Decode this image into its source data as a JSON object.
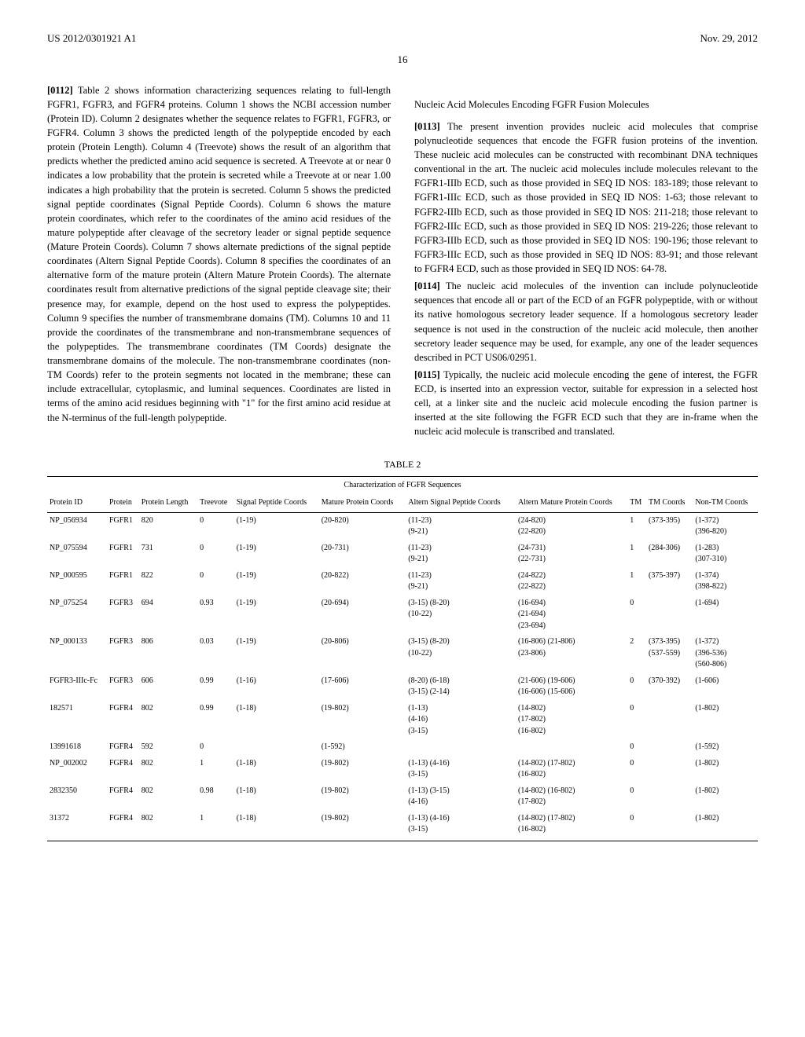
{
  "header": {
    "pub_number": "US 2012/0301921 A1",
    "date": "Nov. 29, 2012"
  },
  "page_number": "16",
  "left_column": {
    "para_0112_num": "[0112]",
    "para_0112": "Table 2 shows information characterizing sequences relating to full-length FGFR1, FGFR3, and FGFR4 proteins. Column 1 shows the NCBI accession number (Protein ID). Column 2 designates whether the sequence relates to FGFR1, FGFR3, or FGFR4. Column 3 shows the predicted length of the polypeptide encoded by each protein (Protein Length). Column 4 (Treevote) shows the result of an algorithm that predicts whether the predicted amino acid sequence is secreted. A Treevote at or near 0 indicates a low probability that the protein is secreted while a Treevote at or near 1.00 indicates a high probability that the protein is secreted. Column 5 shows the predicted signal peptide coordinates (Signal Peptide Coords). Column 6 shows the mature protein coordinates, which refer to the coordinates of the amino acid residues of the mature polypeptide after cleavage of the secretory leader or signal peptide sequence (Mature Protein Coords). Column 7 shows alternate predictions of the signal peptide coordinates (Altern Signal Peptide Coords). Column 8 specifies the coordinates of an alternative form of the mature protein (Altern Mature Protein Coords). The alternate coordinates result from alternative predictions of the signal peptide cleavage site; their presence may, for example, depend on the host used to express the polypeptides. Column 9 specifies the number of transmembrane domains (TM). Columns 10 and 11 provide the coordinates of the transmembrane and non-transmembrane sequences of the polypeptides. The transmembrane coordinates (TM Coords) designate the transmembrane domains of the molecule. The non-transmembrane coordinates (non-TM Coords) refer to the protein segments not located in the membrane; these can include extracellular, cytoplasmic, and luminal sequences. Coordinates are listed in terms of the amino acid residues beginning with \"1\" for the first amino acid residue at the N-terminus of the full-length polypeptide."
  },
  "right_column": {
    "section_heading": "Nucleic Acid Molecules Encoding FGFR Fusion Molecules",
    "para_0113_num": "[0113]",
    "para_0113": "The present invention provides nucleic acid molecules that comprise polynucleotide sequences that encode the FGFR fusion proteins of the invention. These nucleic acid molecules can be constructed with recombinant DNA techniques conventional in the art. The nucleic acid molecules include molecules relevant to the FGFR1-IIIb ECD, such as those provided in SEQ ID NOS: 183-189; those relevant to FGFR1-IIIc ECD, such as those provided in SEQ ID NOS: 1-63; those relevant to FGFR2-IIIb ECD, such as those provided in SEQ ID NOS: 211-218; those relevant to FGFR2-IIIc ECD, such as those provided in SEQ ID NOS: 219-226; those relevant to FGFR3-IIIb ECD, such as those provided in SEQ ID NOS: 190-196; those relevant to FGFR3-IIIc ECD, such as those provided in SEQ ID NOS: 83-91; and those relevant to FGFR4 ECD, such as those provided in SEQ ID NOS: 64-78.",
    "para_0114_num": "[0114]",
    "para_0114": "The nucleic acid molecules of the invention can include polynucleotide sequences that encode all or part of the ECD of an FGFR polypeptide, with or without its native homologous secretory leader sequence. If a homologous secretory leader sequence is not used in the construction of the nucleic acid molecule, then another secretory leader sequence may be used, for example, any one of the leader sequences described in PCT US06/02951.",
    "para_0115_num": "[0115]",
    "para_0115": "Typically, the nucleic acid molecule encoding the gene of interest, the FGFR ECD, is inserted into an expression vector, suitable for expression in a selected host cell, at a linker site and the nucleic acid molecule encoding the fusion partner is inserted at the site following the FGFR ECD such that they are in-frame when the nucleic acid molecule is transcribed and translated."
  },
  "table": {
    "caption": "TABLE 2",
    "title": "Characterization of FGFR Sequences",
    "columns": [
      "Protein ID",
      "Protein",
      "Protein Length",
      "Treevote",
      "Signal Peptide Coords",
      "Mature Protein Coords",
      "Altern Signal Peptide Coords",
      "Altern Mature Protein Coords",
      "TM",
      "TM Coords",
      "Non-TM Coords"
    ],
    "rows": [
      [
        "NP_056934",
        "FGFR1",
        "820",
        "0",
        "(1-19)",
        "(20-820)",
        "(11-23)\n(9-21)",
        "(24-820)\n(22-820)",
        "1",
        "(373-395)",
        "(1-372)\n(396-820)"
      ],
      [
        "NP_075594",
        "FGFR1",
        "731",
        "0",
        "(1-19)",
        "(20-731)",
        "(11-23)\n(9-21)",
        "(24-731)\n(22-731)",
        "1",
        "(284-306)",
        "(1-283)\n(307-310)"
      ],
      [
        "NP_000595",
        "FGFR1",
        "822",
        "0",
        "(1-19)",
        "(20-822)",
        "(11-23)\n(9-21)",
        "(24-822)\n(22-822)",
        "1",
        "(375-397)",
        "(1-374)\n(398-822)"
      ],
      [
        "NP_075254",
        "FGFR3",
        "694",
        "0.93",
        "(1-19)",
        "(20-694)",
        "(3-15) (8-20)\n(10-22)",
        "(16-694)\n(21-694)\n(23-694)",
        "0",
        "",
        "(1-694)"
      ],
      [
        "NP_000133",
        "FGFR3",
        "806",
        "0.03",
        "(1-19)",
        "(20-806)",
        "(3-15) (8-20)\n(10-22)",
        "(16-806) (21-806)\n(23-806)",
        "2",
        "(373-395)\n(537-559)",
        "(1-372)\n(396-536)\n(560-806)"
      ],
      [
        "FGFR3-IIIc-Fc",
        "FGFR3",
        "606",
        "0.99",
        "(1-16)",
        "(17-606)",
        "(8-20) (6-18)\n(3-15) (2-14)",
        "(21-606) (19-606)\n(16-606) (15-606)",
        "0",
        "(370-392)",
        "(1-606)"
      ],
      [
        "182571",
        "FGFR4",
        "802",
        "0.99",
        "(1-18)",
        "(19-802)",
        "(1-13)\n(4-16)\n(3-15)",
        "(14-802)\n(17-802)\n(16-802)",
        "0",
        "",
        "(1-802)"
      ],
      [
        "13991618",
        "FGFR4",
        "592",
        "0",
        "",
        "(1-592)",
        "",
        "",
        "0",
        "",
        "(1-592)"
      ],
      [
        "NP_002002",
        "FGFR4",
        "802",
        "1",
        "(1-18)",
        "(19-802)",
        "(1-13) (4-16)\n(3-15)",
        "(14-802) (17-802)\n(16-802)",
        "0",
        "",
        "(1-802)"
      ],
      [
        "2832350",
        "FGFR4",
        "802",
        "0.98",
        "(1-18)",
        "(19-802)",
        "(1-13) (3-15)\n(4-16)",
        "(14-802) (16-802)\n(17-802)",
        "0",
        "",
        "(1-802)"
      ],
      [
        "31372",
        "FGFR4",
        "802",
        "1",
        "(1-18)",
        "(19-802)",
        "(1-13) (4-16)\n(3-15)",
        "(14-802) (17-802)\n(16-802)",
        "0",
        "",
        "(1-802)"
      ]
    ]
  }
}
